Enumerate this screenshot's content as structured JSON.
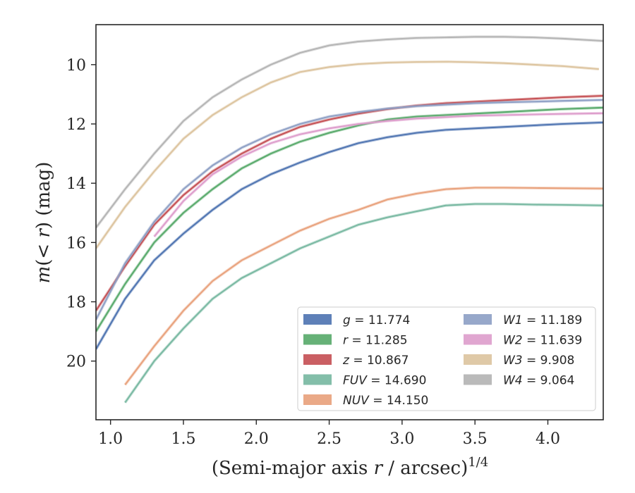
{
  "chart_data": {
    "type": "line",
    "xlabel": "(Semi-major axis r / arcsec)^1/4",
    "ylabel": "m(< r) (mag)",
    "xlim": [
      0.9,
      4.38
    ],
    "ylim": [
      21.98,
      8.65
    ],
    "y_inverted": true,
    "grid": false,
    "legend_placement": "lower-right",
    "x_ticks": [
      {
        "value": 1.0,
        "label": "1.0"
      },
      {
        "value": 1.5,
        "label": "1.5"
      },
      {
        "value": 2.0,
        "label": "2.0"
      },
      {
        "value": 2.5,
        "label": "2.5"
      },
      {
        "value": 3.0,
        "label": "3.0"
      },
      {
        "value": 3.5,
        "label": "3.5"
      },
      {
        "value": 4.0,
        "label": "4.0"
      }
    ],
    "y_ticks": [
      {
        "value": 10,
        "label": "10"
      },
      {
        "value": 12,
        "label": "12"
      },
      {
        "value": 14,
        "label": "14"
      },
      {
        "value": 16,
        "label": "16"
      },
      {
        "value": 18,
        "label": "18"
      },
      {
        "value": 20,
        "label": "20"
      }
    ],
    "series": [
      {
        "name": "g = 11.774",
        "color": "#4c72b0",
        "x": [
          0.9,
          1.1,
          1.3,
          1.5,
          1.7,
          1.9,
          2.1,
          2.3,
          2.5,
          2.7,
          2.9,
          3.1,
          3.3,
          3.5,
          3.7,
          3.9,
          4.1,
          4.38
        ],
        "y": [
          19.6,
          17.9,
          16.6,
          15.7,
          14.9,
          14.2,
          13.7,
          13.3,
          12.95,
          12.65,
          12.45,
          12.3,
          12.2,
          12.15,
          12.1,
          12.05,
          12.0,
          11.95
        ]
      },
      {
        "name": "r = 11.285",
        "color": "#55a868",
        "x": [
          0.9,
          1.1,
          1.3,
          1.5,
          1.7,
          1.9,
          2.1,
          2.3,
          2.5,
          2.7,
          2.9,
          3.1,
          3.3,
          3.5,
          3.7,
          3.9,
          4.1,
          4.38
        ],
        "y": [
          19.0,
          17.4,
          16.0,
          15.0,
          14.2,
          13.5,
          13.0,
          12.6,
          12.3,
          12.05,
          11.85,
          11.75,
          11.7,
          11.65,
          11.6,
          11.55,
          11.5,
          11.45
        ]
      },
      {
        "name": "z = 10.867",
        "color": "#c44e52",
        "x": [
          0.9,
          1.1,
          1.3,
          1.5,
          1.7,
          1.9,
          2.1,
          2.3,
          2.5,
          2.7,
          2.9,
          3.1,
          3.3,
          3.5,
          3.7,
          3.9,
          4.1,
          4.38
        ],
        "y": [
          18.3,
          16.8,
          15.4,
          14.4,
          13.6,
          13.0,
          12.5,
          12.1,
          11.85,
          11.65,
          11.5,
          11.38,
          11.3,
          11.25,
          11.2,
          11.15,
          11.1,
          11.05
        ]
      },
      {
        "name": "FUV = 14.690",
        "color": "#76b7a0",
        "x": [
          1.1,
          1.3,
          1.5,
          1.7,
          1.9,
          2.1,
          2.3,
          2.5,
          2.7,
          2.9,
          3.1,
          3.3,
          3.5,
          3.7,
          3.9,
          4.1,
          4.38
        ],
        "y": [
          21.4,
          20.0,
          18.9,
          17.9,
          17.2,
          16.7,
          16.2,
          15.8,
          15.4,
          15.15,
          14.95,
          14.75,
          14.7,
          14.7,
          14.72,
          14.73,
          14.75
        ]
      },
      {
        "name": "NUV = 14.150",
        "color": "#e8a07a",
        "x": [
          1.1,
          1.3,
          1.5,
          1.7,
          1.9,
          2.1,
          2.3,
          2.5,
          2.7,
          2.9,
          3.1,
          3.3,
          3.5,
          3.7,
          3.9,
          4.1,
          4.38
        ],
        "y": [
          20.8,
          19.5,
          18.3,
          17.3,
          16.6,
          16.1,
          15.6,
          15.2,
          14.9,
          14.55,
          14.35,
          14.2,
          14.15,
          14.15,
          14.16,
          14.17,
          14.18
        ]
      },
      {
        "name": "W1 = 11.189",
        "color": "#8c9ec4",
        "x": [
          0.9,
          1.1,
          1.3,
          1.5,
          1.7,
          1.9,
          2.1,
          2.3,
          2.5,
          2.7,
          2.9,
          3.1,
          3.3,
          3.5,
          3.7,
          3.9,
          4.1,
          4.38
        ],
        "y": [
          18.6,
          16.7,
          15.3,
          14.2,
          13.4,
          12.8,
          12.35,
          12.0,
          11.75,
          11.6,
          11.48,
          11.4,
          11.35,
          11.3,
          11.27,
          11.25,
          11.22,
          11.19
        ]
      },
      {
        "name": "W2 = 11.639",
        "color": "#dd9ccb",
        "x": [
          1.3,
          1.5,
          1.7,
          1.9,
          2.1,
          2.3,
          2.5,
          2.7,
          2.9,
          3.1,
          3.3,
          3.5,
          3.7,
          3.9,
          4.1,
          4.38
        ],
        "y": [
          15.8,
          14.6,
          13.7,
          13.1,
          12.65,
          12.35,
          12.15,
          12.0,
          11.9,
          11.82,
          11.77,
          11.72,
          11.7,
          11.68,
          11.66,
          11.64
        ]
      },
      {
        "name": "W3 = 9.908",
        "color": "#dcc39d",
        "x": [
          0.9,
          1.1,
          1.3,
          1.5,
          1.7,
          1.9,
          2.1,
          2.3,
          2.5,
          2.7,
          2.9,
          3.1,
          3.3,
          3.5,
          3.7,
          3.9,
          4.1,
          4.35
        ],
        "y": [
          16.2,
          14.8,
          13.6,
          12.5,
          11.7,
          11.1,
          10.6,
          10.25,
          10.08,
          9.98,
          9.93,
          9.91,
          9.9,
          9.92,
          9.95,
          10.0,
          10.05,
          10.15
        ]
      },
      {
        "name": "W4 = 9.064",
        "color": "#b3b3b3",
        "x": [
          0.9,
          1.1,
          1.3,
          1.5,
          1.7,
          1.9,
          2.1,
          2.3,
          2.5,
          2.7,
          2.9,
          3.1,
          3.3,
          3.5,
          3.7,
          3.9,
          4.1,
          4.38
        ],
        "y": [
          15.5,
          14.2,
          13.0,
          11.9,
          11.1,
          10.5,
          10.0,
          9.6,
          9.35,
          9.22,
          9.15,
          9.1,
          9.08,
          9.06,
          9.06,
          9.08,
          9.12,
          9.2
        ]
      }
    ]
  }
}
